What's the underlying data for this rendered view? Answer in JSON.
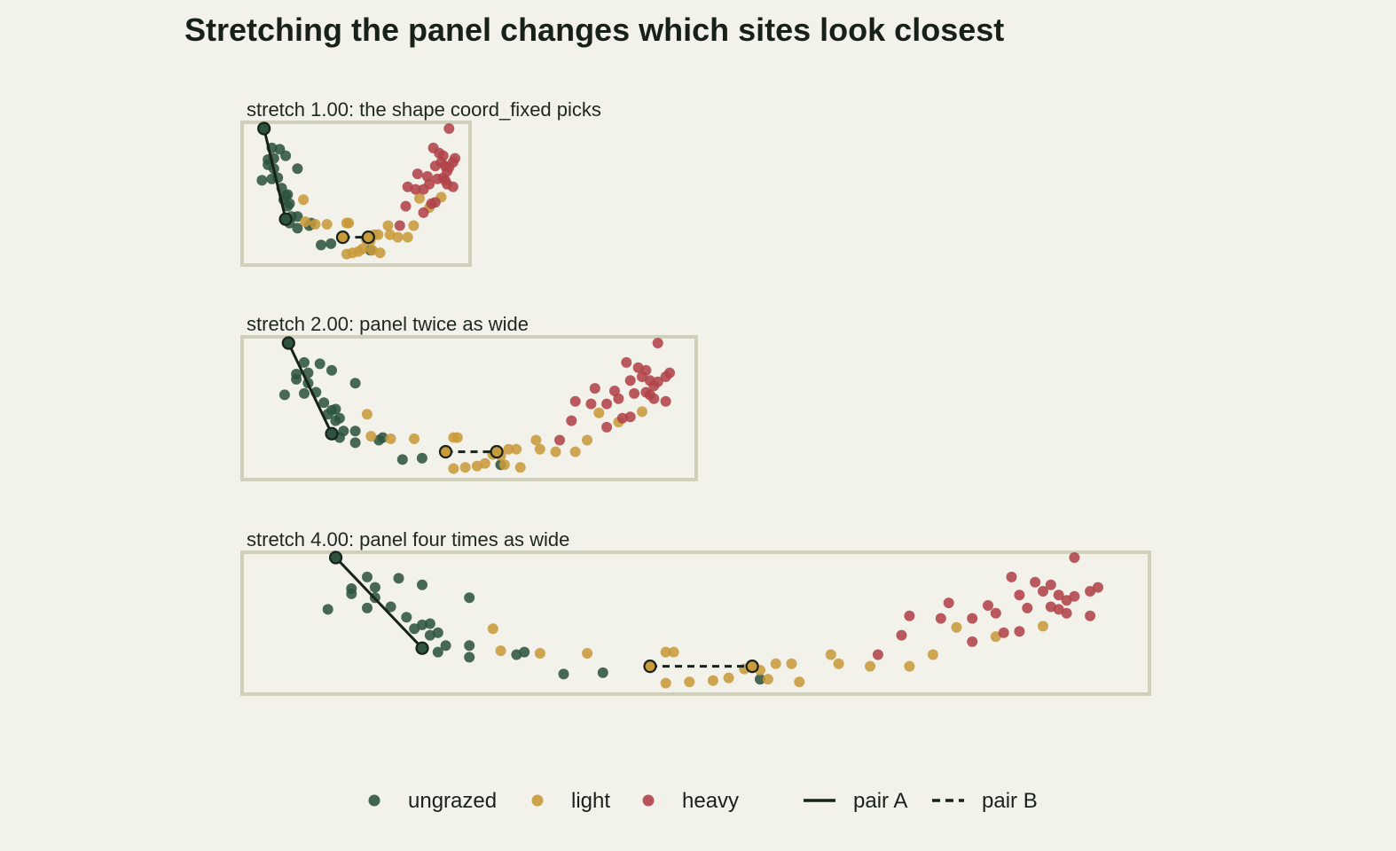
{
  "chart_data": {
    "type": "scatter",
    "title": "Stretching the panel changes which sites look closest",
    "xlabel": "",
    "ylabel": "",
    "grid": false,
    "legend_placement": "bottom",
    "colors": {
      "ungrazed": "#2e5440",
      "light": "#c89a3a",
      "heavy": "#b0434a",
      "pair_line": "#16221a",
      "panel_border": "#cfcfba",
      "background": "#f2f1ea"
    },
    "legend": [
      {
        "kind": "point",
        "key": "ungrazed",
        "label": "ungrazed"
      },
      {
        "kind": "point",
        "key": "light",
        "label": "light"
      },
      {
        "kind": "point",
        "key": "heavy",
        "label": "heavy"
      },
      {
        "kind": "line",
        "style": "solid",
        "label": "pair A"
      },
      {
        "kind": "line",
        "style": "dashed",
        "label": "pair B"
      }
    ],
    "xlim": [
      0,
      1
    ],
    "ylim": [
      0,
      1
    ],
    "pairs": {
      "pair_A": {
        "from": [
          0.03,
          1.0
        ],
        "to": [
          0.14,
          0.3
        ]
      },
      "pair_B": {
        "from": [
          0.43,
          0.16
        ],
        "to": [
          0.56,
          0.16
        ]
      }
    },
    "panels": [
      {
        "label": "stretch 1.00: the shape coord_fixed picks",
        "stretch": 1.0
      },
      {
        "label": "stretch 2.00: panel twice as wide",
        "stretch": 2.0
      },
      {
        "label": "stretch 4.00: panel four times as wide",
        "stretch": 4.0
      }
    ],
    "series": [
      {
        "key": "ungrazed",
        "points": [
          [
            0.03,
            1.0
          ],
          [
            0.07,
            0.85
          ],
          [
            0.11,
            0.84
          ],
          [
            0.05,
            0.76
          ],
          [
            0.08,
            0.77
          ],
          [
            0.14,
            0.79
          ],
          [
            0.05,
            0.72
          ],
          [
            0.08,
            0.69
          ],
          [
            0.1,
            0.62
          ],
          [
            0.07,
            0.61
          ],
          [
            0.2,
            0.69
          ],
          [
            0.02,
            0.6
          ],
          [
            0.12,
            0.54
          ],
          [
            0.14,
            0.48
          ],
          [
            0.15,
            0.49
          ],
          [
            0.16,
            0.42
          ],
          [
            0.17,
            0.32
          ],
          [
            0.2,
            0.32
          ],
          [
            0.16,
            0.27
          ],
          [
            0.2,
            0.23
          ],
          [
            0.15,
            0.4
          ],
          [
            0.13,
            0.45
          ],
          [
            0.27,
            0.27
          ],
          [
            0.26,
            0.25
          ],
          [
            0.14,
            0.3
          ],
          [
            0.32,
            0.1
          ],
          [
            0.37,
            0.11
          ],
          [
            0.57,
            0.06
          ]
        ]
      },
      {
        "key": "light",
        "points": [
          [
            0.43,
            0.16
          ],
          [
            0.56,
            0.16
          ],
          [
            0.23,
            0.45
          ],
          [
            0.24,
            0.28
          ],
          [
            0.29,
            0.26
          ],
          [
            0.35,
            0.26
          ],
          [
            0.45,
            0.27
          ],
          [
            0.46,
            0.27
          ],
          [
            0.45,
            0.03
          ],
          [
            0.48,
            0.04
          ],
          [
            0.51,
            0.05
          ],
          [
            0.53,
            0.07
          ],
          [
            0.55,
            0.14
          ],
          [
            0.57,
            0.13
          ],
          [
            0.59,
            0.18
          ],
          [
            0.61,
            0.18
          ],
          [
            0.66,
            0.25
          ],
          [
            0.67,
            0.18
          ],
          [
            0.71,
            0.16
          ],
          [
            0.76,
            0.16
          ],
          [
            0.79,
            0.25
          ],
          [
            0.82,
            0.46
          ],
          [
            0.87,
            0.39
          ],
          [
            0.93,
            0.47
          ],
          [
            0.58,
            0.06
          ],
          [
            0.62,
            0.04
          ]
        ]
      },
      {
        "key": "heavy",
        "points": [
          [
            0.97,
            1.0
          ],
          [
            0.89,
            0.85
          ],
          [
            0.92,
            0.81
          ],
          [
            0.94,
            0.79
          ],
          [
            0.9,
            0.71
          ],
          [
            0.95,
            0.71
          ],
          [
            0.97,
            0.7
          ],
          [
            0.94,
            0.62
          ],
          [
            0.96,
            0.67
          ],
          [
            0.99,
            0.74
          ],
          [
            1.0,
            0.77
          ],
          [
            0.93,
            0.74
          ],
          [
            0.81,
            0.65
          ],
          [
            0.86,
            0.63
          ],
          [
            0.8,
            0.53
          ],
          [
            0.84,
            0.53
          ],
          [
            0.87,
            0.57
          ],
          [
            0.91,
            0.61
          ],
          [
            0.99,
            0.55
          ],
          [
            0.95,
            0.6
          ],
          [
            0.9,
            0.43
          ],
          [
            0.88,
            0.42
          ],
          [
            0.84,
            0.35
          ],
          [
            0.76,
            0.55
          ],
          [
            0.75,
            0.4
          ],
          [
            0.72,
            0.25
          ],
          [
            0.96,
            0.57
          ]
        ]
      }
    ]
  }
}
